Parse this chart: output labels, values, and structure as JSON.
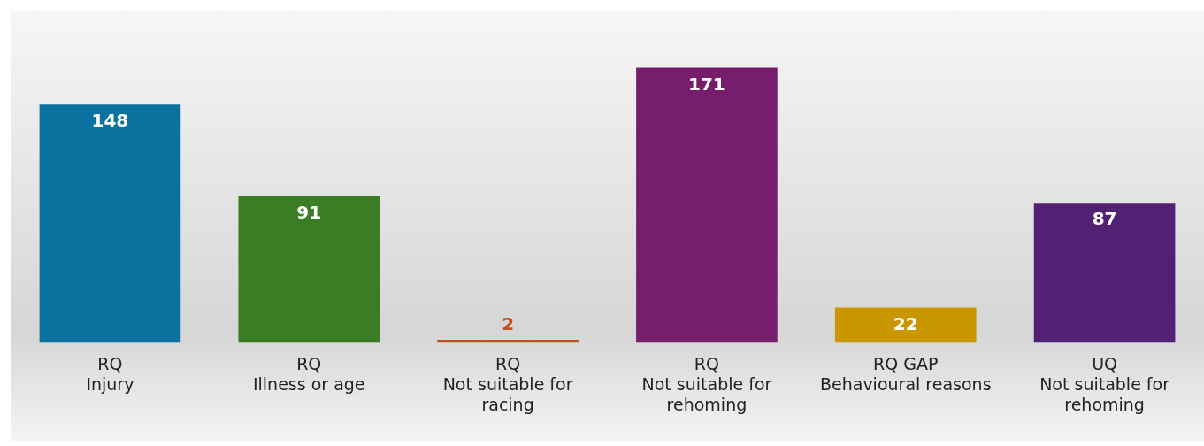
{
  "chart_data": {
    "type": "bar",
    "categories": [
      "RQ\nInjury",
      "RQ\nIllness or age",
      "RQ\nNot suitable for\nracing",
      "RQ\nNot suitable for\nrehoming",
      "RQ GAP\nBehavioural reasons",
      "UQ\nNot suitable for\nrehoming"
    ],
    "values": [
      148,
      91,
      2,
      171,
      22,
      87
    ],
    "colors": [
      "#0b72a0",
      "#3a7d24",
      "#c0501f",
      "#761d6c",
      "#c99700",
      "#532174"
    ],
    "data_labels": true,
    "grid": false,
    "legend": false
  }
}
